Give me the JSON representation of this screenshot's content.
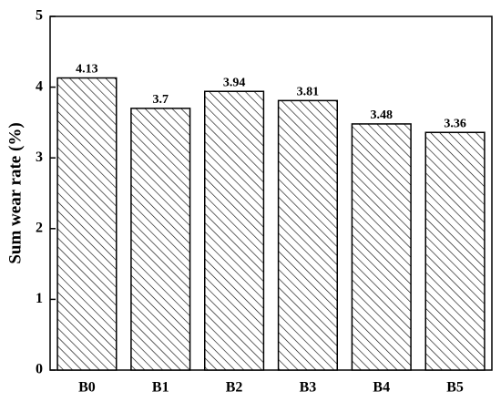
{
  "chart_data": {
    "type": "bar",
    "ylabel": "Sum wear rate (%)",
    "categories": [
      "B0",
      "B1",
      "B2",
      "B3",
      "B4",
      "B5"
    ],
    "values": [
      4.13,
      3.7,
      3.94,
      3.81,
      3.48,
      3.36
    ],
    "color": "#000000",
    "ylim": [
      0,
      5
    ],
    "yticks": [
      0,
      1,
      2,
      3,
      4,
      5
    ],
    "grid": false
  }
}
